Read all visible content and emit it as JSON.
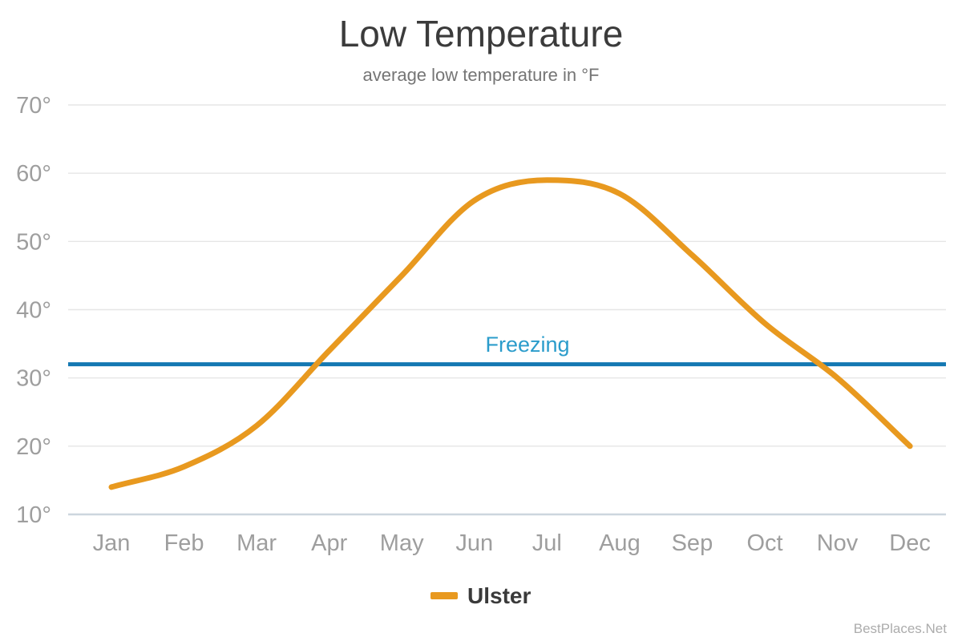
{
  "chart_data": {
    "type": "line",
    "title": "Low Temperature",
    "subtitle": "average low temperature in °F",
    "categories": [
      "Jan",
      "Feb",
      "Mar",
      "Apr",
      "May",
      "Jun",
      "Jul",
      "Aug",
      "Sep",
      "Oct",
      "Nov",
      "Dec"
    ],
    "series": [
      {
        "name": "Ulster",
        "color": "#E8991F",
        "values": [
          14,
          17,
          23,
          34,
          45,
          56,
          59,
          57,
          48,
          38,
          30,
          20
        ]
      }
    ],
    "y_ticks": [
      10,
      20,
      30,
      40,
      50,
      60,
      70
    ],
    "y_tick_suffix": "°",
    "ylim": [
      10,
      70
    ],
    "xlabel": "",
    "ylabel": "",
    "grid": true,
    "curve": "smooth",
    "legend_position": "bottom",
    "annotations": [
      {
        "label": "Freezing",
        "value": 32,
        "line_color": "#1478B2",
        "text_color": "#2B9CCB"
      }
    ]
  },
  "watermark": "BestPlaces.Net",
  "styles": {
    "background": "#FFFFFF",
    "title_color": "#3B3B3B",
    "subtitle_color": "#757575",
    "axis_label_color": "#9E9E9E",
    "gridline_color": "#E6E6E6",
    "baseline_color": "#CDD6DE",
    "legend_text_color": "#3A3A3A",
    "watermark_color": "#ACACAC"
  }
}
